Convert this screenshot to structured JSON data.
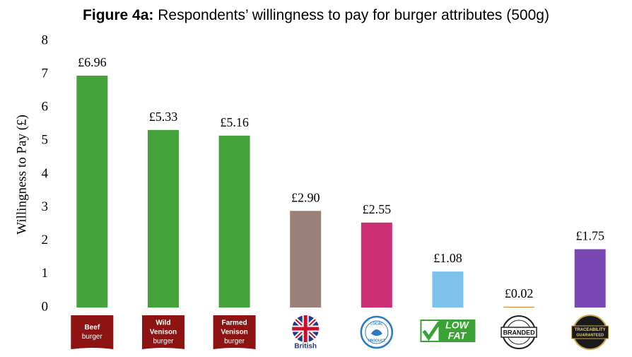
{
  "chart_data": {
    "type": "bar",
    "title_label": "Figure 4a:",
    "title": "Respondents’ willingness to pay for burger attributes (500g)",
    "y_label": "Willingness to Pay (£)",
    "categories": [
      [
        "Beef",
        "burger"
      ],
      [
        "Wild",
        "Venison",
        "burger"
      ],
      [
        "Farmed",
        "Venison",
        "burger"
      ],
      [
        "British"
      ],
      [
        "LOCAL",
        "PRODUCT"
      ],
      [
        "LOW",
        "FAT"
      ],
      [
        "BRANDED"
      ],
      [
        "TRACEABILITY",
        "GUARANTEED"
      ]
    ],
    "values": [
      6.96,
      5.33,
      5.16,
      2.9,
      2.55,
      1.08,
      0.02,
      1.75
    ],
    "value_labels": [
      "£6.96",
      "£5.33",
      "£5.16",
      "£2.90",
      "£2.55",
      "£1.08",
      "£0.02",
      "£1.75"
    ],
    "colors": [
      "#43a23a",
      "#43a23a",
      "#43a23a",
      "#9b8079",
      "#cc2e73",
      "#7cc2ea",
      "#e8792b",
      "#7a48b5"
    ],
    "ylim": [
      0,
      8
    ],
    "yticks": [
      0,
      1,
      2,
      3,
      4,
      5,
      6,
      7,
      8
    ],
    "grid": false
  }
}
